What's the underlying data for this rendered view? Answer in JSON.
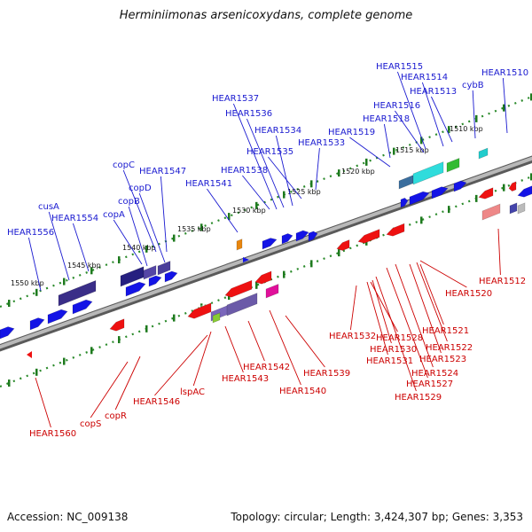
{
  "title": "Herminiimonas arsenicoxydans, complete genome",
  "footer": {
    "accession": "Accession: NC_009138",
    "topology": "Topology: circular; Length: 3,424,307 bp; Genes: 3,353"
  },
  "colors": {
    "label_top": "#1a1ad0",
    "label_bottom": "#cc0000",
    "tick": "#2a8a2a",
    "backbone": "#808080",
    "fwd_gene": "#1414e6",
    "rev_gene": "#ee1111"
  },
  "kbp_labels": [
    "1510 kbp",
    "1515 kbp",
    "1520 kbp",
    "1525 kbp",
    "1530 kbp",
    "1535 kbp",
    "1540 kbp",
    "1545 kbp",
    "1550 kbp"
  ],
  "labels_top": [
    "HEAR1515",
    "HEAR1514",
    "HEAR1510",
    "HEAR1513",
    "cybB",
    "HEAR1516",
    "HEAR1518",
    "HEAR1519",
    "HEAR1537",
    "HEAR1536",
    "HEAR1534",
    "HEAR1533",
    "HEAR1535",
    "HEAR1538",
    "HEAR1541",
    "copC",
    "HEAR1547",
    "copD",
    "copB",
    "copA",
    "cusA",
    "HEAR1554",
    "HEAR1556"
  ],
  "labels_bottom": [
    "HEAR1512",
    "HEAR1520",
    "HEAR1521",
    "HEAR1522",
    "HEAR1523",
    "HEAR1524",
    "HEAR1527",
    "HEAR1529",
    "HEAR1532",
    "HEAR1528",
    "HEAR1530",
    "HEAR1531",
    "HEAR1539",
    "HEAR1540",
    "HEAR1542",
    "HEAR1543",
    "lspAC",
    "HEAR1546",
    "copR",
    "copS",
    "HEAR1560"
  ]
}
